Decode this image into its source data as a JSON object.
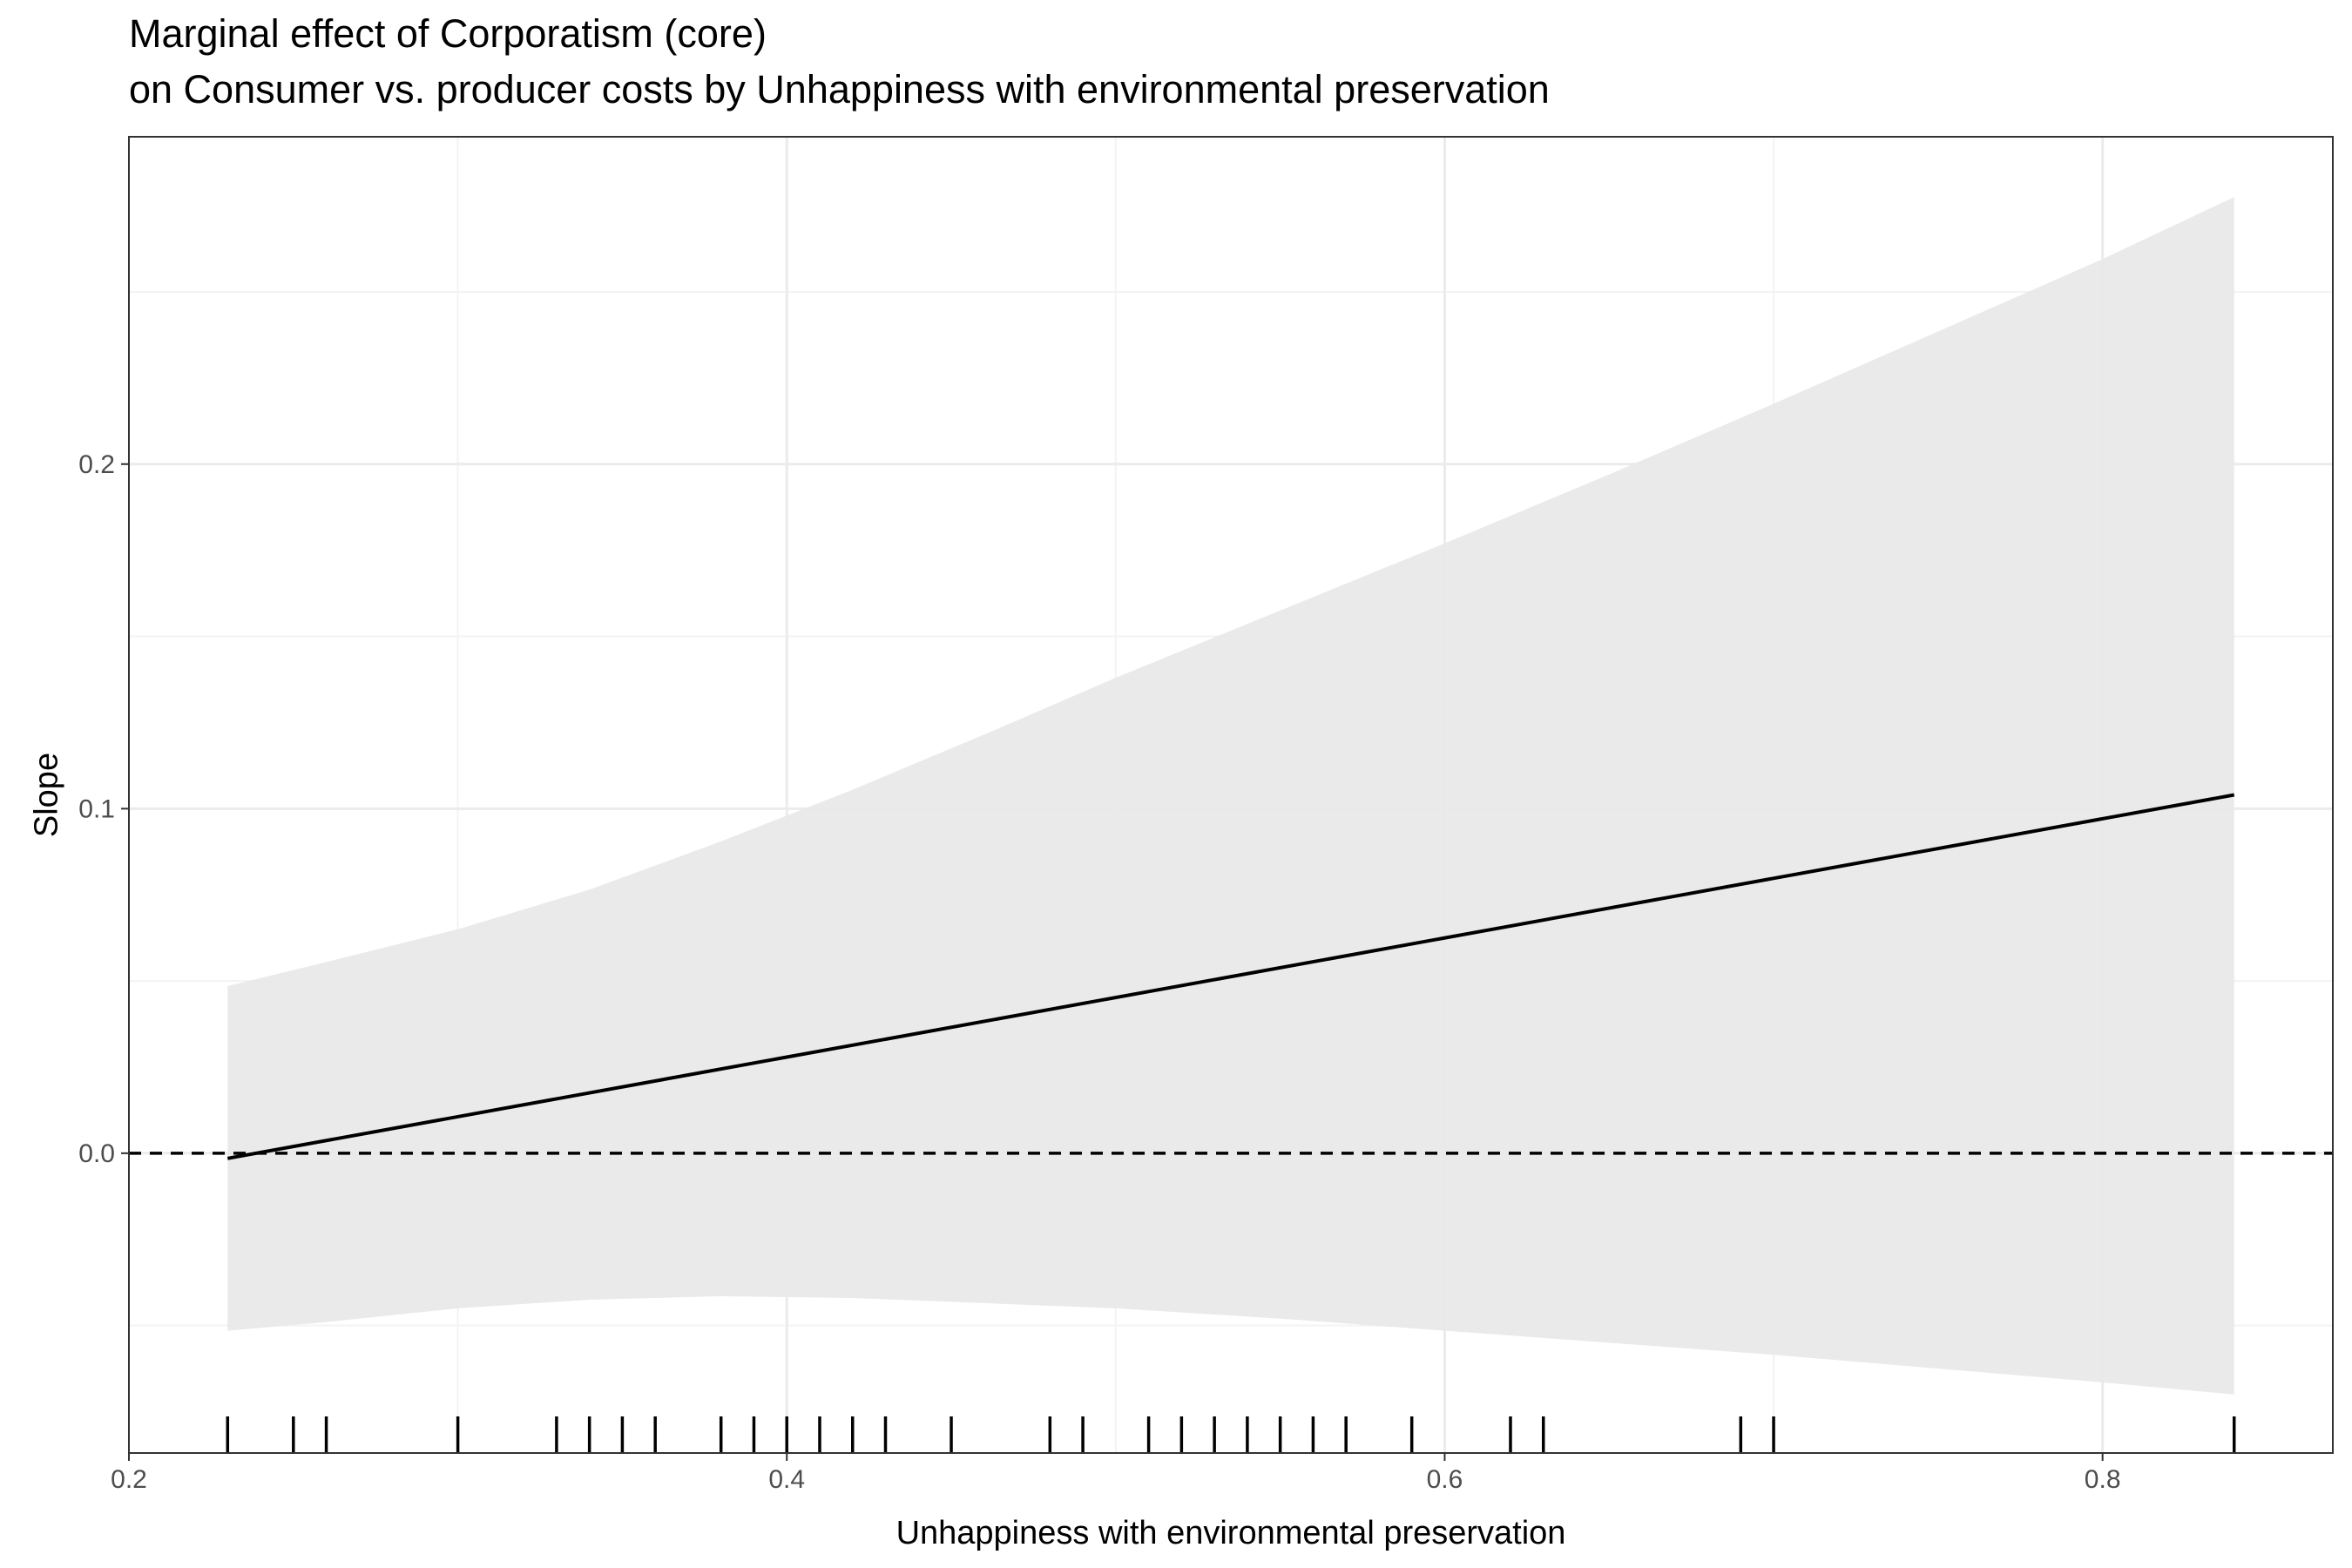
{
  "chart_data": {
    "type": "line",
    "title": "Marginal effect of Corporatism (core)",
    "subtitle": "on Consumer vs. producer costs by Unhappiness with environmental preservation",
    "xlabel": "Unhappiness with environmental preservation",
    "ylabel": "Slope",
    "xlim": [
      0.2,
      0.87
    ],
    "ylim": [
      -0.087,
      0.295
    ],
    "x_ticks": [
      0.2,
      0.4,
      0.6,
      0.8
    ],
    "x_tick_labels": [
      "0.2",
      "0.4",
      "0.6",
      "0.8"
    ],
    "y_ticks": [
      0.0,
      0.1,
      0.2
    ],
    "y_tick_labels": [
      "0.0",
      "0.1",
      "0.2"
    ],
    "grid": true,
    "reference_line": {
      "y": 0.0,
      "style": "dashed"
    },
    "series": [
      {
        "x": [
          0.23,
          0.84
        ],
        "y": [
          -0.0015,
          0.104
        ]
      }
    ],
    "confidence_band": {
      "x": [
        0.23,
        0.26,
        0.3,
        0.34,
        0.38,
        0.42,
        0.46,
        0.5,
        0.55,
        0.6,
        0.65,
        0.7,
        0.75,
        0.8,
        0.84
      ],
      "upper": [
        0.0485,
        0.0555,
        0.065,
        0.0765,
        0.0905,
        0.1055,
        0.1215,
        0.138,
        0.1575,
        0.177,
        0.197,
        0.2175,
        0.2385,
        0.2595,
        0.2775
      ],
      "lower": [
        -0.0515,
        -0.049,
        -0.045,
        -0.0425,
        -0.0415,
        -0.042,
        -0.0435,
        -0.045,
        -0.048,
        -0.0515,
        -0.055,
        -0.0585,
        -0.0625,
        -0.0665,
        -0.07
      ]
    },
    "rug_x": [
      0.23,
      0.25,
      0.26,
      0.3,
      0.33,
      0.34,
      0.35,
      0.36,
      0.38,
      0.39,
      0.4,
      0.41,
      0.42,
      0.43,
      0.45,
      0.48,
      0.49,
      0.51,
      0.52,
      0.53,
      0.54,
      0.55,
      0.56,
      0.57,
      0.59,
      0.62,
      0.63,
      0.69,
      0.7,
      0.84
    ],
    "colors": {
      "band": "#e8e8e8",
      "line": "#000000",
      "grid_major": "#ebebeb",
      "grid_minor": "#f3f3f3",
      "panel_border": "#333333",
      "tick_label": "#4d4d4d"
    }
  }
}
